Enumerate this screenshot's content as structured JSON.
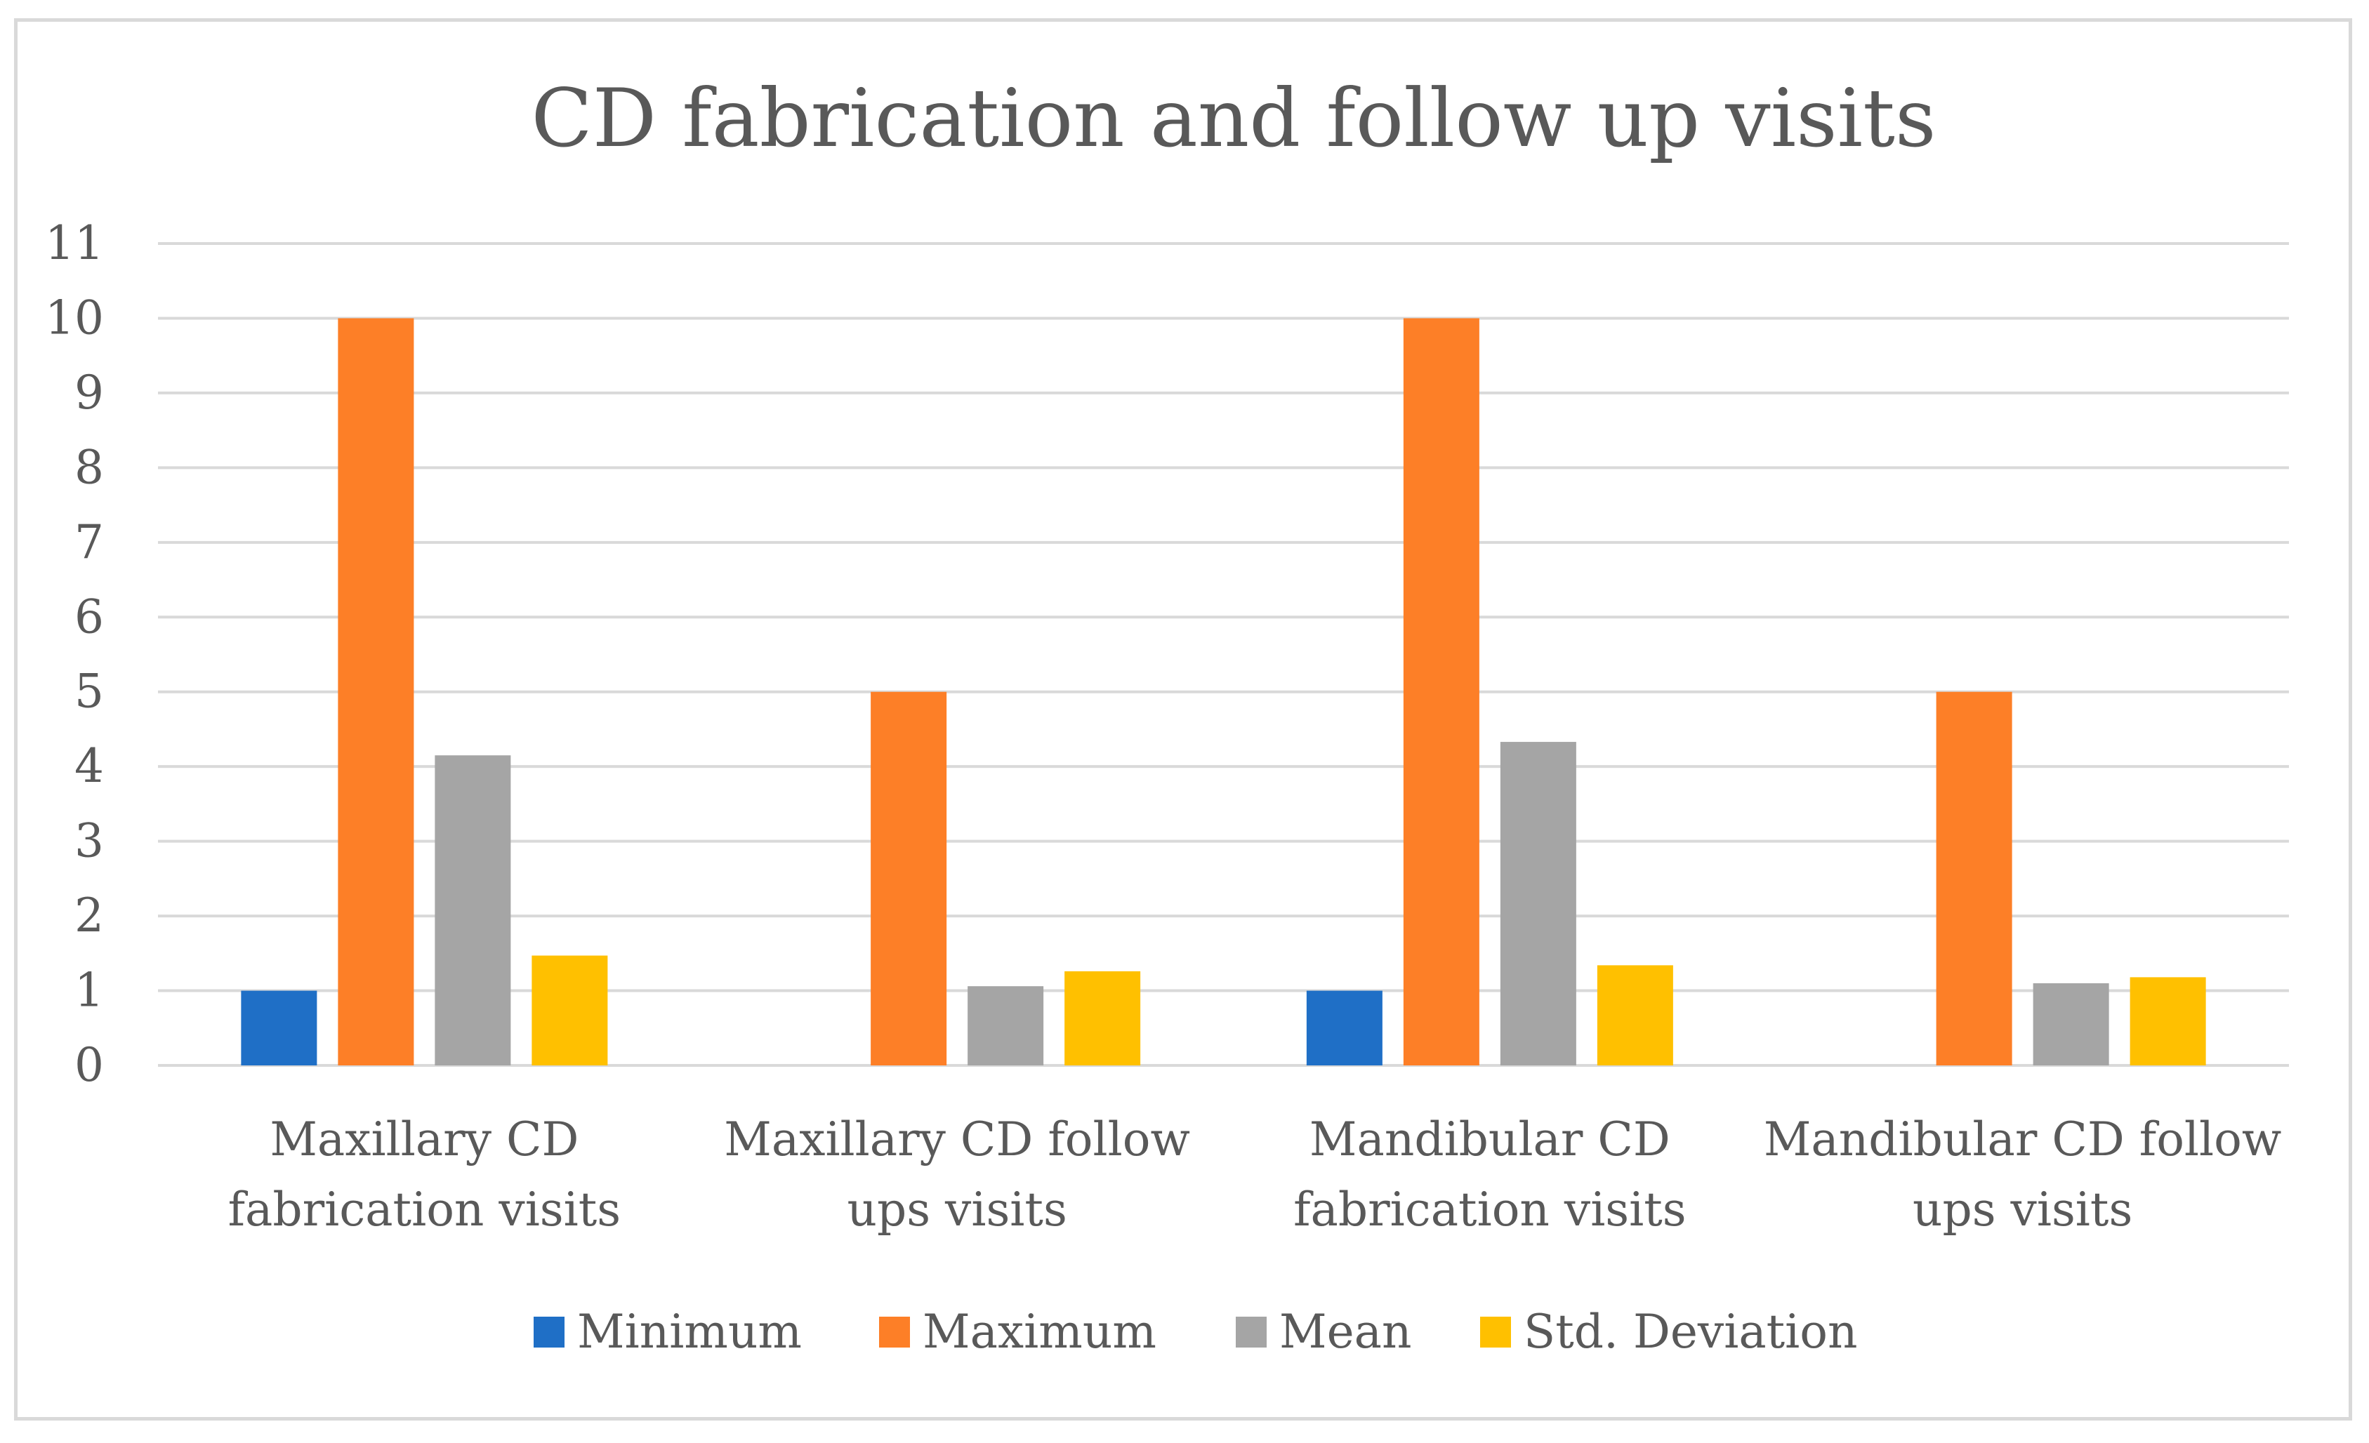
{
  "chart_data": {
    "type": "bar",
    "title": "CD fabrication and follow up visits",
    "xlabel": "",
    "ylabel": "",
    "ylim": [
      0,
      11
    ],
    "yticks": [
      "0",
      "1",
      "2",
      "3",
      "4",
      "5",
      "6",
      "7",
      "8",
      "9",
      "10",
      "11"
    ],
    "grid": true,
    "legend_position": "bottom",
    "categories": [
      [
        "Maxillary CD",
        "fabrication visits"
      ],
      [
        "Maxillary CD follow",
        "ups visits"
      ],
      [
        "Mandibular CD",
        "fabrication visits"
      ],
      [
        "Mandibular CD follow",
        "ups visits"
      ]
    ],
    "series": [
      {
        "name": "Minimum",
        "color": "#1f6fc6",
        "values": [
          1,
          0,
          1,
          0
        ]
      },
      {
        "name": "Maximum",
        "color": "#fd7f27",
        "values": [
          10,
          5,
          10,
          5
        ]
      },
      {
        "name": "Mean",
        "color": "#a5a5a5",
        "values": [
          4.15,
          1.06,
          4.33,
          1.1
        ]
      },
      {
        "name": "Std. Deviation",
        "color": "#ffc000",
        "values": [
          1.47,
          1.26,
          1.34,
          1.18
        ]
      }
    ]
  }
}
